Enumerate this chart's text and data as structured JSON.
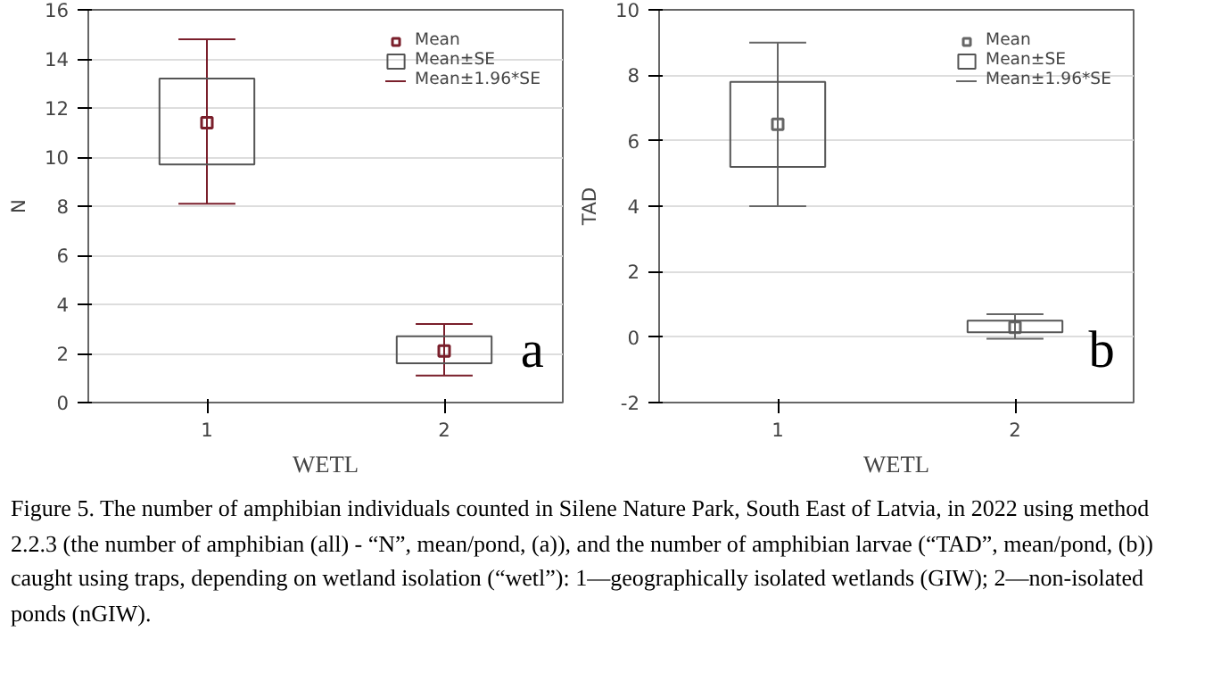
{
  "chart_data": [
    {
      "type": "bar",
      "xlabel": "WETL",
      "ylabel": "N",
      "categories": [
        "1",
        "2"
      ],
      "ylim": [
        0,
        16
      ],
      "yticks": [
        0,
        2,
        4,
        6,
        8,
        10,
        12,
        14,
        16
      ],
      "grid": "y",
      "legend": "top right",
      "series": [
        {
          "type": "scatter",
          "name": "Mean",
          "color": "#7a1f2b",
          "marker": "square",
          "values": [
            11.4,
            2.1
          ],
          "errors": [
            [
              8.1,
              14.8
            ],
            [
              1.1,
              3.2
            ]
          ]
        },
        {
          "name": "Mean±SE",
          "color": "#555555",
          "base": [
            9.7,
            1.6
          ],
          "values": [
            3.5,
            1.1
          ]
        }
      ],
      "annotations": [
        "a",
        "Mean±1.96*SE"
      ]
    },
    {
      "type": "bar",
      "xlabel": "WETL",
      "ylabel": "TAD",
      "categories": [
        "1",
        "2"
      ],
      "ylim": [
        -2,
        10
      ],
      "yticks": [
        -2,
        0,
        2,
        4,
        6,
        8,
        10
      ],
      "grid": "y",
      "legend": "top right",
      "series": [
        {
          "type": "scatter",
          "name": "Mean",
          "color": "#666666",
          "marker": "square",
          "values": [
            6.5,
            0.3
          ],
          "errors": [
            [
              4.0,
              9.0
            ],
            [
              -0.05,
              0.7
            ]
          ]
        },
        {
          "name": "Mean±SE",
          "color": "#555555",
          "base": [
            5.2,
            0.15
          ],
          "values": [
            2.6,
            0.35
          ]
        }
      ],
      "annotations": [
        "b",
        "Mean±1.96*SE",
        "Figure 5. The number of amphibian individuals counted in Silene Nature Park, South East of Latvia, in 2022 using method 2.2.3 (the number of amphibian (all) - “N”, mean/pond, (a)), and the number of amphibian larvae (“TAD”, mean/pond, (b)) caught using traps, depending on wetland isolation (“wetl”): 1—geographically isolated wetlands (GIW); 2—non-isolated ponds (nGIW)."
      ]
    }
  ]
}
